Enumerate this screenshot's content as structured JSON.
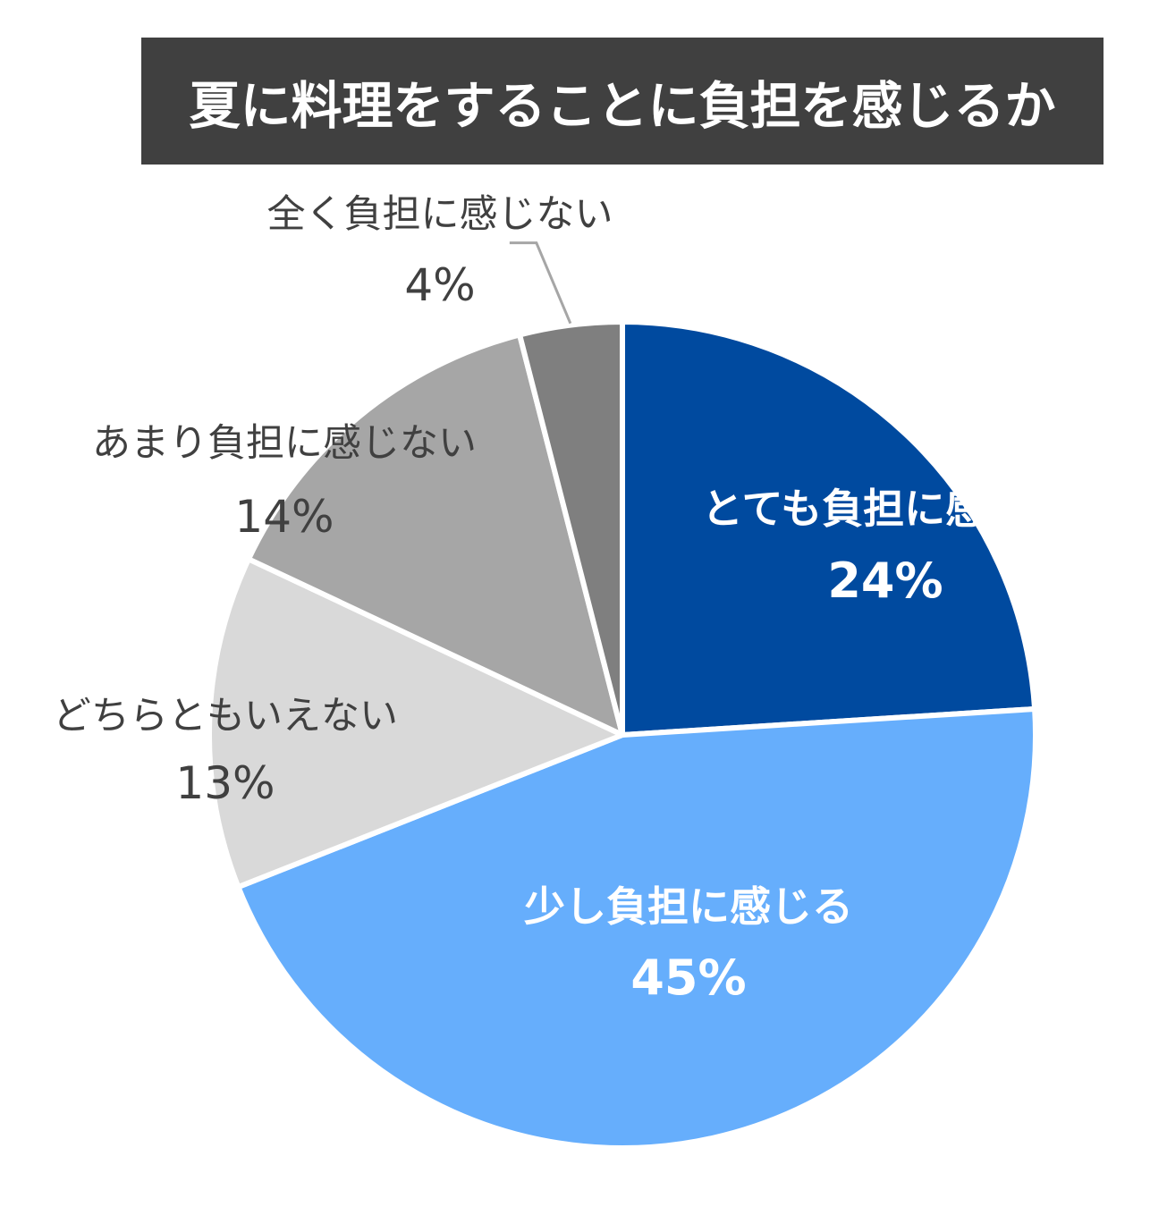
{
  "chart_data": {
    "type": "pie",
    "title": "夏に料理をすることに負担を感じるか",
    "start_angle": "12 o'clock",
    "direction": "clockwise",
    "slices": [
      {
        "label": "とても負担に感じる",
        "value": 24,
        "value_label": "24%",
        "color": "#004a9f",
        "label_color": "#ffffff",
        "label_position": "inside"
      },
      {
        "label": "少し負担に感じる",
        "value": 45,
        "value_label": "45%",
        "color": "#66aefc",
        "label_color": "#ffffff",
        "label_position": "inside"
      },
      {
        "label": "どちらともいえない",
        "value": 13,
        "value_label": "13%",
        "color": "#d9d9d9",
        "label_color": "#404040",
        "label_position": "outside"
      },
      {
        "label": "あまり負担に感じない",
        "value": 14,
        "value_label": "14%",
        "color": "#a6a6a6",
        "label_color": "#404040",
        "label_position": "outside"
      },
      {
        "label": "全く負担に感じない",
        "value": 4,
        "value_label": "4%",
        "color": "#7f7f7f",
        "label_color": "#404040",
        "label_position": "outside"
      }
    ],
    "title_background": "#404040",
    "title_color": "#ffffff",
    "legend": "none"
  }
}
